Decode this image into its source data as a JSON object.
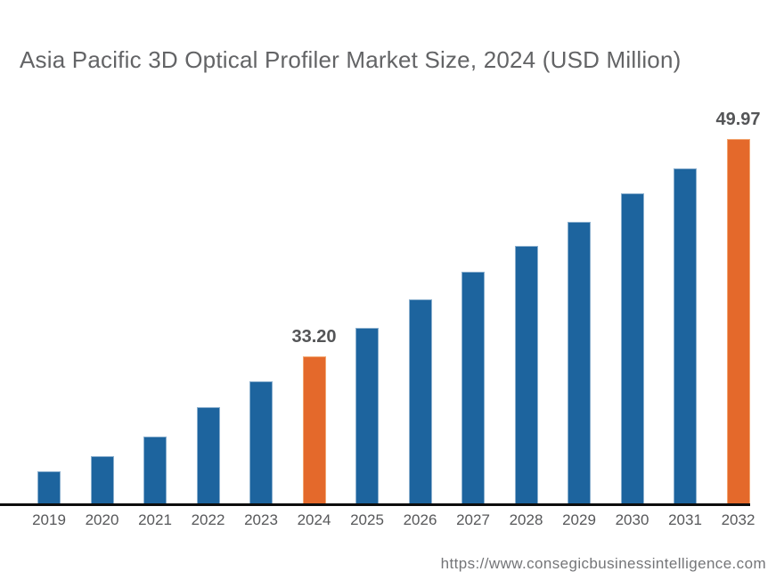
{
  "title": "Asia Pacific 3D Optical Profiler Market Size, 2024 (USD Million)",
  "footer": {
    "url": "https://www.consegicbusinessintelligence.com"
  },
  "chart_data": {
    "type": "bar",
    "title": "Asia Pacific 3D Optical Profiler Market Size, 2024 (USD Million)",
    "unit": "USD Million",
    "categories": [
      "2019",
      "2020",
      "2021",
      "2022",
      "2023",
      "2024",
      "2025",
      "2026",
      "2027",
      "2028",
      "2029",
      "2030",
      "2031",
      "2032"
    ],
    "values": [
      24.3,
      25.5,
      27.0,
      29.3,
      31.3,
      33.2,
      35.4,
      37.6,
      39.7,
      41.7,
      43.6,
      45.8,
      47.7,
      49.97
    ],
    "value_labels": {
      "2024": "33.20",
      "2032": "49.97"
    },
    "highlighted_categories": [
      "2024",
      "2032"
    ],
    "xlabel": "",
    "ylabel": "",
    "legend": "none",
    "gridlines": false,
    "colors": {
      "bar_default": "#1d649e",
      "bar_default_edge": "#8aafce",
      "bar_highlight": "#e4692b",
      "bar_highlight_edge": "#f2a671",
      "axis_line": "#0d0d0d",
      "value_label_text": "#545557",
      "tick_label_text": "#57585a",
      "title_text": "#636466",
      "footer_text": "#747578",
      "background": "#ffffff"
    }
  }
}
